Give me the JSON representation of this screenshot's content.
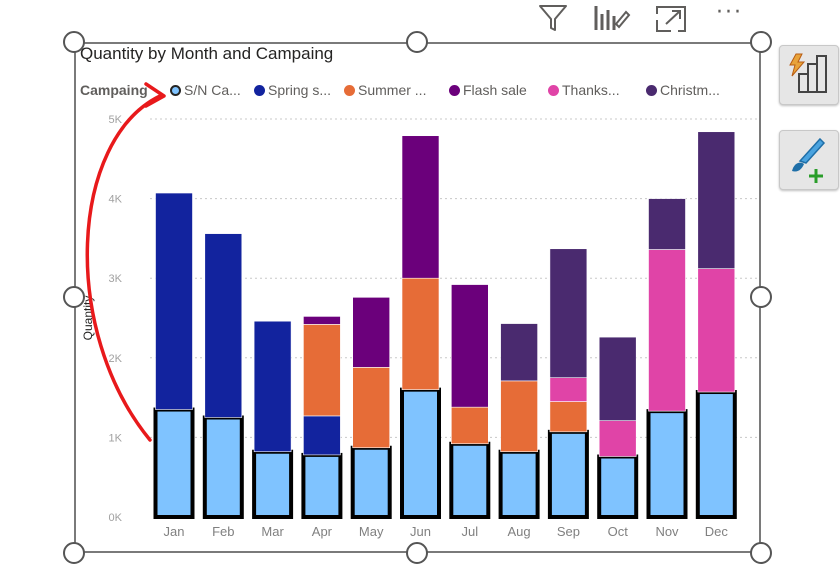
{
  "toolbar": {
    "icons": [
      "filter-icon",
      "drill-icon",
      "focus-mode-icon",
      "more-options-icon"
    ],
    "more_label": "···"
  },
  "side_panel": {
    "icons": [
      "format-visual-icon",
      "add-analytics-icon"
    ]
  },
  "legend": {
    "title": "Campaing",
    "items": [
      {
        "label": "S/N Ca...",
        "color": "#7fc3ff",
        "outlined": true
      },
      {
        "label": "Spring s...",
        "color": "#12239e"
      },
      {
        "label": "Summer ...",
        "color": "#e66c37"
      },
      {
        "label": "Flash sale",
        "color": "#6b007b"
      },
      {
        "label": "Thanks...",
        "color": "#e044a7"
      },
      {
        "label": "Christm...",
        "color": "#4a2a6f"
      }
    ]
  },
  "chart_data": {
    "type": "bar",
    "stacked": true,
    "title": "Quantity by Month and Campaing",
    "xlabel": "",
    "ylabel": "Quantity",
    "ylim": [
      0,
      5000
    ],
    "yticks": [
      "0K",
      "1K",
      "2K",
      "3K",
      "4K",
      "5K"
    ],
    "grid": true,
    "legend_position": "top-left",
    "categories": [
      "Jan",
      "Feb",
      "Mar",
      "Apr",
      "May",
      "Jun",
      "Jul",
      "Aug",
      "Sep",
      "Oct",
      "Nov",
      "Dec"
    ],
    "series": [
      {
        "name": "S/N Ca...",
        "color": "#7fc3ff",
        "values": [
          1350,
          1250,
          820,
          780,
          870,
          1600,
          920,
          820,
          1070,
          760,
          1330,
          1570
        ]
      },
      {
        "name": "Spring s...",
        "color": "#12239e",
        "values": [
          2720,
          2310,
          1640,
          490,
          0,
          0,
          0,
          0,
          0,
          0,
          0,
          0
        ]
      },
      {
        "name": "Summer ...",
        "color": "#e66c37",
        "values": [
          0,
          0,
          0,
          1150,
          1010,
          1400,
          460,
          890,
          380,
          0,
          0,
          0
        ]
      },
      {
        "name": "Flash sale",
        "color": "#6b007b",
        "values": [
          0,
          0,
          0,
          100,
          880,
          1790,
          1540,
          0,
          0,
          0,
          0,
          0
        ]
      },
      {
        "name": "Thanks...",
        "color": "#e044a7",
        "values": [
          0,
          0,
          0,
          0,
          0,
          0,
          0,
          0,
          300,
          450,
          2030,
          1550
        ]
      },
      {
        "name": "Christm...",
        "color": "#4a2a6f",
        "values": [
          0,
          0,
          0,
          0,
          0,
          0,
          0,
          720,
          1620,
          1050,
          640,
          1720
        ]
      }
    ],
    "annotation": {
      "type": "arrow",
      "color": "#e8191b"
    }
  }
}
